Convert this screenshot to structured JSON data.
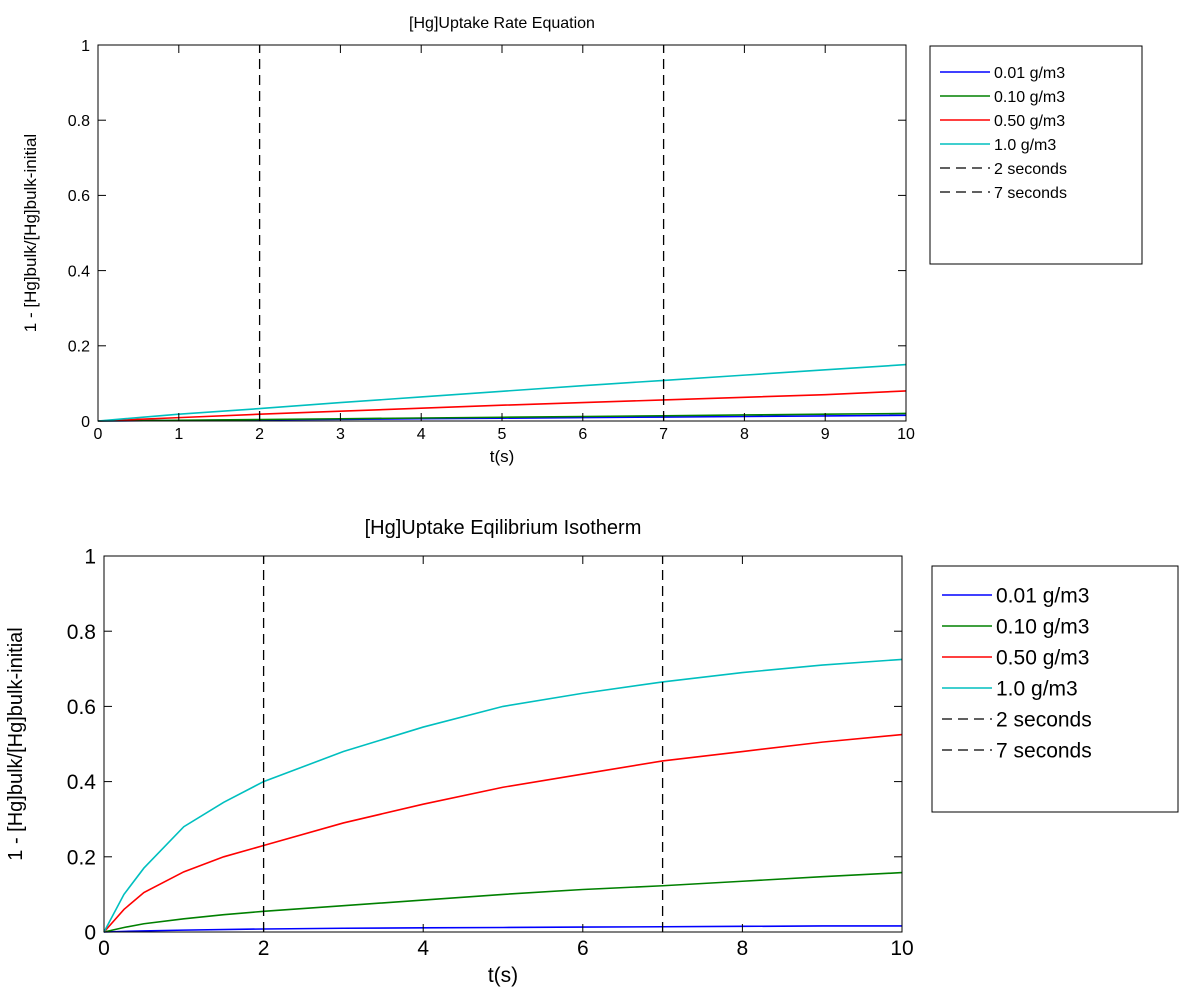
{
  "chart_data": [
    {
      "type": "line",
      "title": "[Hg]Uptake Rate Equation",
      "xlabel": "t(s)",
      "ylabel": "1 - [Hg]bulk/[Hg]bulk-initial",
      "xlim": [
        0,
        10
      ],
      "ylim": [
        0,
        1
      ],
      "xticks": [
        "0",
        "1",
        "2",
        "3",
        "4",
        "5",
        "6",
        "7",
        "8",
        "9",
        "10"
      ],
      "yticks": [
        "0",
        "0.2",
        "0.4",
        "0.6",
        "0.8",
        "1"
      ],
      "grid": false,
      "legend_position": "outside-right",
      "series": [
        {
          "name": "0.01 g/m3",
          "color": "#0000ff",
          "style": "solid",
          "x": [
            0,
            1,
            2,
            3,
            4,
            5,
            6,
            7,
            8,
            9,
            10
          ],
          "y": [
            0,
            0.0015,
            0.003,
            0.0045,
            0.006,
            0.0075,
            0.009,
            0.0105,
            0.012,
            0.0135,
            0.015
          ]
        },
        {
          "name": "0.10 g/m3",
          "color": "#008000",
          "style": "solid",
          "x": [
            0,
            1,
            2,
            3,
            4,
            5,
            6,
            7,
            8,
            9,
            10
          ],
          "y": [
            0,
            0.002,
            0.004,
            0.006,
            0.008,
            0.01,
            0.012,
            0.014,
            0.016,
            0.018,
            0.02
          ]
        },
        {
          "name": "0.50 g/m3",
          "color": "#ff0000",
          "style": "solid",
          "x": [
            0,
            1,
            2,
            3,
            4,
            5,
            6,
            7,
            8,
            9,
            10
          ],
          "y": [
            0,
            0.009,
            0.018,
            0.026,
            0.034,
            0.042,
            0.049,
            0.056,
            0.063,
            0.07,
            0.08
          ]
        },
        {
          "name": "1.0 g/m3",
          "color": "#00bfbf",
          "style": "solid",
          "x": [
            0,
            1,
            2,
            3,
            4,
            5,
            6,
            7,
            8,
            9,
            10
          ],
          "y": [
            0,
            0.018,
            0.033,
            0.049,
            0.064,
            0.079,
            0.094,
            0.108,
            0.122,
            0.136,
            0.15
          ]
        },
        {
          "name": "2 seconds",
          "color": "#000000",
          "style": "dashed",
          "x": [
            2,
            2
          ],
          "y": [
            0,
            1
          ]
        },
        {
          "name": "7 seconds",
          "color": "#000000",
          "style": "dashed",
          "x": [
            7,
            7
          ],
          "y": [
            0,
            1
          ]
        }
      ]
    },
    {
      "type": "line",
      "title": "[Hg]Uptake Eqilibrium Isotherm",
      "xlabel": "t(s)",
      "ylabel": "1 - [Hg]bulk/[Hg]bulk-initial",
      "xlim": [
        0,
        10
      ],
      "ylim": [
        0,
        1
      ],
      "xticks": [
        "0",
        "2",
        "4",
        "6",
        "8",
        "10"
      ],
      "yticks": [
        "0",
        "0.2",
        "0.4",
        "0.6",
        "0.8",
        "1"
      ],
      "grid": false,
      "legend_position": "outside-right",
      "series": [
        {
          "name": "0.01 g/m3",
          "color": "#0000ff",
          "style": "solid",
          "x": [
            0,
            0.5,
            1,
            2,
            3,
            4,
            5,
            6,
            7,
            8,
            9,
            10
          ],
          "y": [
            0,
            0.003,
            0.005,
            0.008,
            0.01,
            0.011,
            0.012,
            0.013,
            0.014,
            0.015,
            0.016,
            0.016
          ]
        },
        {
          "name": "0.10 g/m3",
          "color": "#008000",
          "style": "solid",
          "x": [
            0,
            0.25,
            0.5,
            1,
            1.5,
            2,
            3,
            4,
            5,
            6,
            7,
            8,
            9,
            10
          ],
          "y": [
            0,
            0.012,
            0.022,
            0.035,
            0.046,
            0.055,
            0.07,
            0.085,
            0.1,
            0.113,
            0.123,
            0.135,
            0.147,
            0.158
          ]
        },
        {
          "name": "0.50 g/m3",
          "color": "#ff0000",
          "style": "solid",
          "x": [
            0,
            0.25,
            0.5,
            1,
            1.5,
            2,
            3,
            4,
            5,
            6,
            7,
            8,
            9,
            10
          ],
          "y": [
            0,
            0.06,
            0.105,
            0.16,
            0.2,
            0.23,
            0.29,
            0.34,
            0.385,
            0.42,
            0.455,
            0.48,
            0.505,
            0.525
          ]
        },
        {
          "name": "1.0 g/m3",
          "color": "#00bfbf",
          "style": "solid",
          "x": [
            0,
            0.25,
            0.5,
            1,
            1.5,
            2,
            3,
            4,
            5,
            6,
            7,
            8,
            9,
            10
          ],
          "y": [
            0,
            0.1,
            0.17,
            0.28,
            0.345,
            0.4,
            0.48,
            0.545,
            0.6,
            0.635,
            0.665,
            0.69,
            0.71,
            0.725
          ]
        },
        {
          "name": "2 seconds",
          "color": "#000000",
          "style": "dashed",
          "x": [
            2,
            2
          ],
          "y": [
            0,
            1
          ]
        },
        {
          "name": "7 seconds",
          "color": "#000000",
          "style": "dashed",
          "x": [
            7,
            7
          ],
          "y": [
            0,
            1
          ]
        }
      ]
    }
  ]
}
